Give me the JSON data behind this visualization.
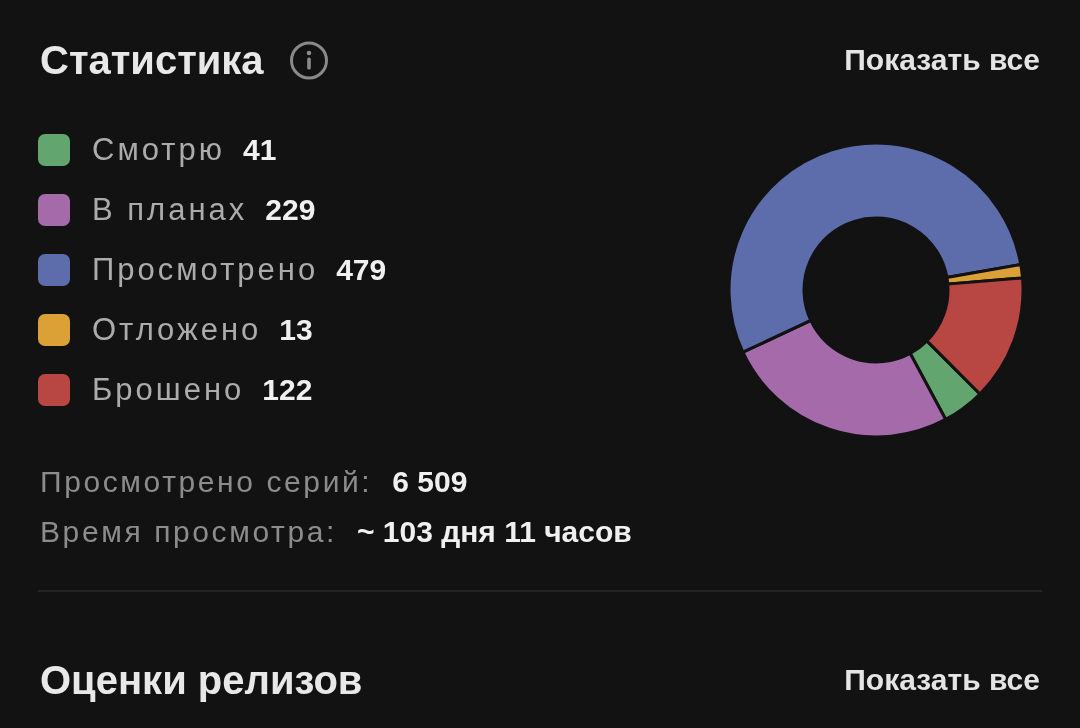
{
  "chart_data": {
    "type": "donut",
    "title": "Статистика",
    "categories": [
      "Смотрю",
      "В планах",
      "Просмотрено",
      "Отложено",
      "Брошено"
    ],
    "values": [
      41,
      229,
      479,
      13,
      122
    ],
    "colors": [
      "#62a56e",
      "#a46aaa",
      "#5d6caa",
      "#dba036",
      "#b84744"
    ],
    "legend": "left",
    "data_labels": true,
    "annotations": [
      "Показать все",
      "Просмотрено серий:",
      "6 509",
      "Время просмотра:",
      "~ 103 дня 11 часов",
      "Оценки релизов",
      "Показать все"
    ]
  }
}
